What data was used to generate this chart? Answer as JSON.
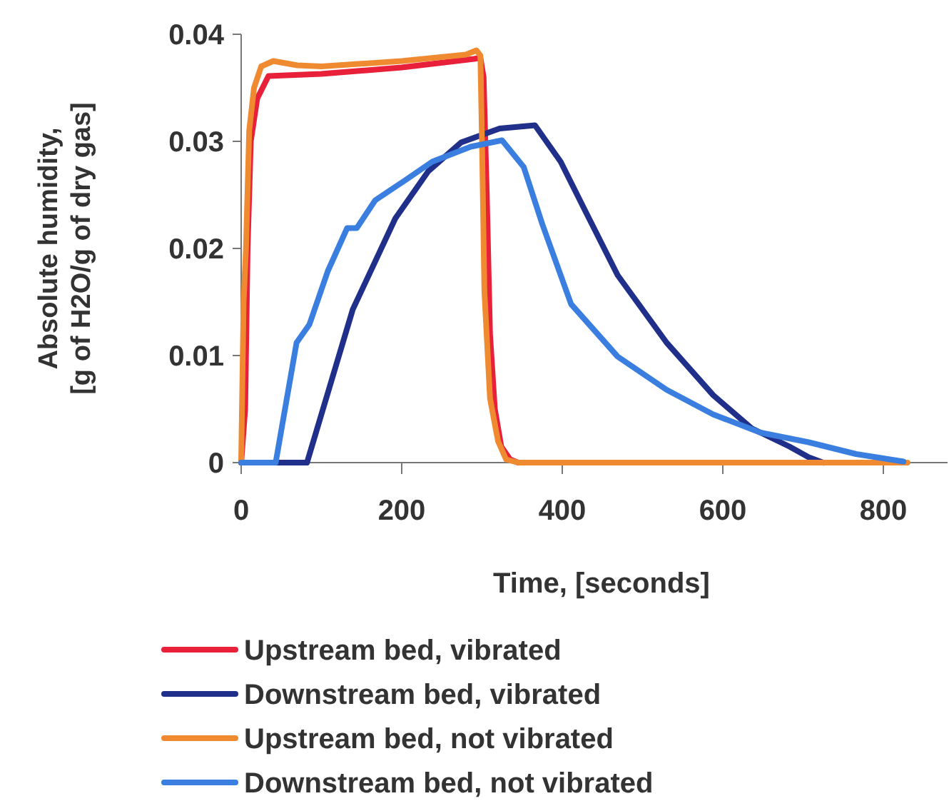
{
  "chart_data": {
    "type": "line",
    "xlabel": "Time, [seconds]",
    "ylabel": "Absolute humidity,\n[g of H2O/g of dry gas]",
    "xlim": [
      0,
      880
    ],
    "xticks": [
      0,
      200,
      400,
      600,
      800
    ],
    "ylim": [
      0,
      0.04
    ],
    "yticks": [
      0,
      0.01,
      0.02,
      0.03,
      0.04
    ],
    "grid": false,
    "legend": "bottom",
    "marker": "none",
    "line_style": "solid",
    "series": [
      {
        "name": "Upstream bed, vibrated",
        "color": "#e8203a",
        "x": [
          0,
          5,
          8,
          12,
          20,
          34,
          100,
          200,
          290,
          298,
          302,
          306,
          310,
          316,
          324,
          335,
          345
        ],
        "values": [
          0,
          0.005,
          0.02,
          0.03,
          0.034,
          0.0361,
          0.0363,
          0.0369,
          0.0377,
          0.0378,
          0.036,
          0.025,
          0.012,
          0.005,
          0.0015,
          0.0003,
          0
        ]
      },
      {
        "name": "Downstream bed, vibrated",
        "color": "#1f2f8a",
        "x": [
          0,
          82,
          139,
          192,
          233,
          274,
          322,
          366,
          398,
          428,
          469,
          530,
          588,
          636,
          683,
          707,
          725
        ],
        "values": [
          0,
          0,
          0.0143,
          0.0228,
          0.0272,
          0.0299,
          0.0312,
          0.0315,
          0.0281,
          0.0236,
          0.0175,
          0.0112,
          0.0063,
          0.0032,
          0.0015,
          0.0005,
          0
        ]
      },
      {
        "name": "Upstream bed, not vibrated",
        "color": "#f08a30",
        "x": [
          0,
          3,
          6,
          10,
          16,
          25,
          40,
          70,
          100,
          200,
          280,
          293,
          298,
          300,
          303,
          310,
          320,
          330,
          345,
          500,
          700,
          830
        ],
        "values": [
          0,
          0.015,
          0.02,
          0.031,
          0.035,
          0.037,
          0.0375,
          0.0371,
          0.037,
          0.0375,
          0.0381,
          0.0385,
          0.038,
          0.03,
          0.016,
          0.006,
          0.002,
          0.0003,
          0,
          0,
          0,
          0
        ]
      },
      {
        "name": "Downstream bed, not vibrated",
        "color": "#3a7fe0",
        "x": [
          0,
          43,
          69,
          85,
          108,
          132,
          144,
          167,
          203,
          238,
          286,
          325,
          352,
          375,
          411,
          469,
          530,
          588,
          647,
          707,
          766,
          825
        ],
        "values": [
          0,
          0,
          0.0112,
          0.0129,
          0.0179,
          0.0219,
          0.0219,
          0.0245,
          0.0263,
          0.0281,
          0.0295,
          0.0301,
          0.0276,
          0.0223,
          0.0148,
          0.0099,
          0.0068,
          0.0045,
          0.0028,
          0.0019,
          0.0008,
          0.0001
        ]
      }
    ]
  }
}
